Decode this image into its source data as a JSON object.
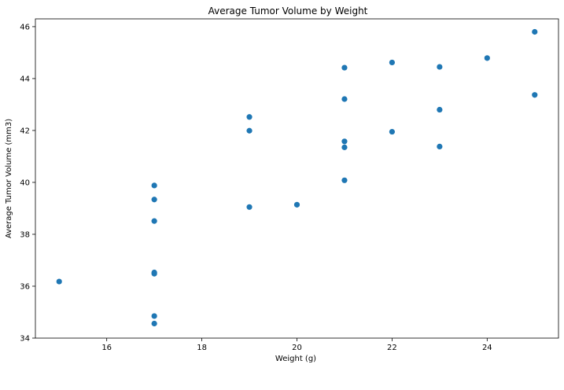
{
  "chart_data": {
    "type": "scatter",
    "title": "Average Tumor Volume by Weight",
    "xlabel": "Weight (g)",
    "ylabel": "Average Tumor Volume (mm3)",
    "xlim": [
      14.5,
      25.5
    ],
    "ylim": [
      34,
      46.3
    ],
    "xticks": [
      16,
      18,
      20,
      22,
      24
    ],
    "yticks": [
      34,
      36,
      38,
      40,
      42,
      44,
      46
    ],
    "grid": false,
    "marker_color": "#1f77b4",
    "points": [
      {
        "x": 15,
        "y": 36.18
      },
      {
        "x": 17,
        "y": 39.88
      },
      {
        "x": 17,
        "y": 39.34
      },
      {
        "x": 17,
        "y": 38.51
      },
      {
        "x": 17,
        "y": 36.53
      },
      {
        "x": 17,
        "y": 36.48
      },
      {
        "x": 17,
        "y": 34.85
      },
      {
        "x": 17,
        "y": 34.56
      },
      {
        "x": 19,
        "y": 42.52
      },
      {
        "x": 19,
        "y": 41.99
      },
      {
        "x": 19,
        "y": 39.05
      },
      {
        "x": 20,
        "y": 39.14
      },
      {
        "x": 21,
        "y": 44.42
      },
      {
        "x": 21,
        "y": 43.21
      },
      {
        "x": 21,
        "y": 41.58
      },
      {
        "x": 21,
        "y": 41.35
      },
      {
        "x": 21,
        "y": 40.08
      },
      {
        "x": 22,
        "y": 44.62
      },
      {
        "x": 22,
        "y": 41.95
      },
      {
        "x": 23,
        "y": 44.45
      },
      {
        "x": 23,
        "y": 42.8
      },
      {
        "x": 23,
        "y": 41.38
      },
      {
        "x": 24,
        "y": 44.79
      },
      {
        "x": 25,
        "y": 45.8
      },
      {
        "x": 25,
        "y": 43.37
      }
    ]
  }
}
